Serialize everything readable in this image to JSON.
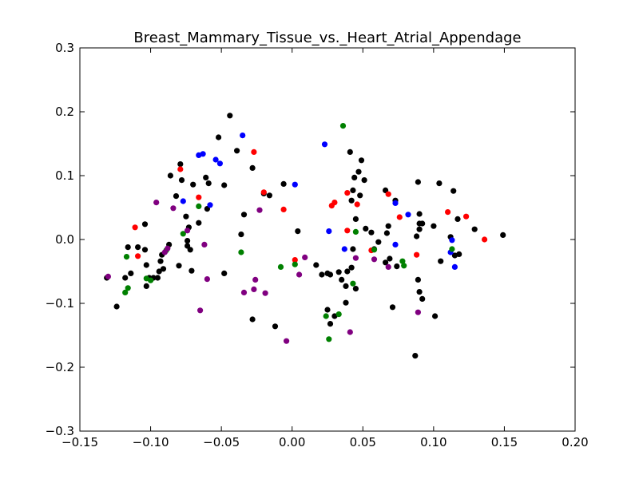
{
  "chart_data": {
    "type": "scatter",
    "title": "Breast_Mammary_Tissue_vs._Heart_Atrial_Appendage",
    "xlabel": "",
    "ylabel": "",
    "xlim": [
      -0.15,
      0.2
    ],
    "ylim": [
      -0.3,
      0.3
    ],
    "xticks": [
      -0.15,
      -0.1,
      -0.05,
      0.0,
      0.05,
      0.1,
      0.15,
      0.2
    ],
    "xtick_labels": [
      "−0.15",
      "−0.10",
      "−0.05",
      "0.00",
      "0.05",
      "0.10",
      "0.15",
      "0.20"
    ],
    "yticks": [
      -0.3,
      -0.2,
      -0.1,
      0.0,
      0.1,
      0.2,
      0.3
    ],
    "ytick_labels": [
      "−0.3",
      "−0.2",
      "−0.1",
      "0.0",
      "0.1",
      "0.2",
      "0.3"
    ],
    "grid": false,
    "series": [
      {
        "color": "#000000",
        "points": [
          [
            -0.131,
            -0.06
          ],
          [
            -0.124,
            -0.105
          ],
          [
            -0.118,
            -0.06
          ],
          [
            -0.116,
            -0.012
          ],
          [
            -0.114,
            -0.053
          ],
          [
            -0.109,
            -0.012
          ],
          [
            -0.104,
            0.024
          ],
          [
            -0.104,
            -0.016
          ],
          [
            -0.103,
            -0.04
          ],
          [
            -0.103,
            -0.073
          ],
          [
            -0.101,
            -0.06
          ],
          [
            -0.098,
            -0.06
          ],
          [
            -0.095,
            -0.06
          ],
          [
            -0.094,
            -0.05
          ],
          [
            -0.093,
            -0.034
          ],
          [
            -0.092,
            -0.024
          ],
          [
            -0.091,
            -0.046
          ],
          [
            -0.087,
            -0.008
          ],
          [
            -0.086,
            0.1
          ],
          [
            -0.082,
            0.068
          ],
          [
            -0.08,
            -0.041
          ],
          [
            -0.079,
            0.118
          ],
          [
            -0.078,
            0.093
          ],
          [
            -0.075,
            0.036
          ],
          [
            -0.074,
            -0.002
          ],
          [
            -0.074,
            -0.01
          ],
          [
            -0.073,
            0.019
          ],
          [
            -0.072,
            -0.016
          ],
          [
            -0.071,
            -0.049
          ],
          [
            -0.07,
            0.086
          ],
          [
            -0.066,
            0.026
          ],
          [
            -0.061,
            0.097
          ],
          [
            -0.06,
            0.048
          ],
          [
            -0.059,
            0.088
          ],
          [
            -0.052,
            0.16
          ],
          [
            -0.048,
            0.085
          ],
          [
            -0.048,
            -0.053
          ],
          [
            -0.044,
            0.194
          ],
          [
            -0.039,
            0.139
          ],
          [
            -0.036,
            0.008
          ],
          [
            -0.034,
            0.039
          ],
          [
            -0.028,
            0.112
          ],
          [
            -0.028,
            -0.125
          ],
          [
            -0.02,
            0.072
          ],
          [
            -0.016,
            0.069
          ],
          [
            -0.012,
            -0.136
          ],
          [
            -0.006,
            0.087
          ],
          [
            0.004,
            0.013
          ],
          [
            0.017,
            -0.04
          ],
          [
            0.021,
            -0.055
          ],
          [
            0.025,
            -0.053
          ],
          [
            0.025,
            -0.11
          ],
          [
            0.027,
            -0.055
          ],
          [
            0.027,
            -0.132
          ],
          [
            0.03,
            -0.12
          ],
          [
            0.033,
            -0.051
          ],
          [
            0.035,
            -0.063
          ],
          [
            0.038,
            -0.099
          ],
          [
            0.038,
            -0.073
          ],
          [
            0.039,
            -0.05
          ],
          [
            0.041,
            0.137
          ],
          [
            0.042,
            0.061
          ],
          [
            0.042,
            -0.044
          ],
          [
            0.043,
            0.077
          ],
          [
            0.043,
            -0.015
          ],
          [
            0.044,
            0.097
          ],
          [
            0.045,
            -0.077
          ],
          [
            0.045,
            0.032
          ],
          [
            0.047,
            0.106
          ],
          [
            0.048,
            0.069
          ],
          [
            0.049,
            0.124
          ],
          [
            0.051,
            0.093
          ],
          [
            0.052,
            0.017
          ],
          [
            0.056,
            0.011
          ],
          [
            0.058,
            -0.015
          ],
          [
            0.061,
            -0.004
          ],
          [
            0.066,
            0.077
          ],
          [
            0.066,
            -0.036
          ],
          [
            0.067,
            0.01
          ],
          [
            0.068,
            0.021
          ],
          [
            0.069,
            -0.03
          ],
          [
            0.071,
            -0.106
          ],
          [
            0.073,
            0.061
          ],
          [
            0.074,
            -0.042
          ],
          [
            0.087,
            -0.182
          ],
          [
            0.088,
            0.005
          ],
          [
            0.089,
            0.09
          ],
          [
            0.089,
            -0.063
          ],
          [
            0.09,
            0.025
          ],
          [
            0.09,
            0.016
          ],
          [
            0.09,
            0.04
          ],
          [
            0.09,
            -0.082
          ],
          [
            0.092,
            0.025
          ],
          [
            0.092,
            -0.093
          ],
          [
            0.1,
            0.021
          ],
          [
            0.101,
            -0.12
          ],
          [
            0.104,
            0.088
          ],
          [
            0.105,
            -0.034
          ],
          [
            0.112,
            0.004
          ],
          [
            0.114,
            0.076
          ],
          [
            0.115,
            -0.025
          ],
          [
            0.117,
            0.032
          ],
          [
            0.118,
            -0.023
          ],
          [
            0.129,
            0.016
          ],
          [
            0.149,
            0.007
          ]
        ]
      },
      {
        "color": "#ff0000",
        "points": [
          [
            -0.111,
            0.019
          ],
          [
            -0.109,
            -0.026
          ],
          [
            -0.079,
            0.11
          ],
          [
            -0.066,
            0.066
          ],
          [
            -0.027,
            0.137
          ],
          [
            -0.02,
            0.074
          ],
          [
            -0.006,
            0.047
          ],
          [
            0.002,
            -0.032
          ],
          [
            0.028,
            0.053
          ],
          [
            0.03,
            0.058
          ],
          [
            0.039,
            0.073
          ],
          [
            0.039,
            0.014
          ],
          [
            0.046,
            0.055
          ],
          [
            0.056,
            -0.017
          ],
          [
            0.068,
            0.071
          ],
          [
            0.076,
            0.035
          ],
          [
            0.088,
            -0.024
          ],
          [
            0.11,
            0.043
          ],
          [
            0.123,
            0.036
          ],
          [
            0.136,
            0.0
          ]
        ]
      },
      {
        "color": "#0000ff",
        "points": [
          [
            -0.077,
            0.06
          ],
          [
            -0.066,
            0.132
          ],
          [
            -0.063,
            0.134
          ],
          [
            -0.058,
            0.054
          ],
          [
            -0.054,
            0.125
          ],
          [
            -0.051,
            0.119
          ],
          [
            -0.035,
            0.163
          ],
          [
            0.002,
            0.086
          ],
          [
            0.023,
            0.149
          ],
          [
            0.026,
            0.013
          ],
          [
            0.037,
            -0.015
          ],
          [
            0.073,
            0.057
          ],
          [
            0.073,
            -0.008
          ],
          [
            0.082,
            0.039
          ],
          [
            0.112,
            -0.02
          ],
          [
            0.113,
            -0.001
          ],
          [
            0.115,
            -0.043
          ]
        ]
      },
      {
        "color": "#008000",
        "points": [
          [
            -0.118,
            -0.083
          ],
          [
            -0.117,
            -0.027
          ],
          [
            -0.116,
            -0.076
          ],
          [
            -0.103,
            -0.061
          ],
          [
            -0.1,
            -0.064
          ],
          [
            -0.089,
            -0.017
          ],
          [
            -0.077,
            0.009
          ],
          [
            -0.066,
            0.052
          ],
          [
            -0.036,
            -0.02
          ],
          [
            -0.008,
            -0.043
          ],
          [
            0.002,
            -0.039
          ],
          [
            0.024,
            -0.12
          ],
          [
            0.026,
            -0.156
          ],
          [
            0.033,
            -0.117
          ],
          [
            0.036,
            0.178
          ],
          [
            0.043,
            -0.069
          ],
          [
            0.045,
            0.012
          ],
          [
            0.058,
            -0.016
          ],
          [
            0.078,
            -0.034
          ],
          [
            0.079,
            -0.041
          ],
          [
            0.113,
            -0.015
          ]
        ]
      },
      {
        "color": "#800080",
        "points": [
          [
            -0.13,
            -0.058
          ],
          [
            -0.096,
            0.058
          ],
          [
            -0.09,
            -0.02
          ],
          [
            -0.088,
            -0.014
          ],
          [
            -0.084,
            0.049
          ],
          [
            -0.074,
            0.014
          ],
          [
            -0.065,
            -0.111
          ],
          [
            -0.062,
            -0.008
          ],
          [
            -0.06,
            -0.062
          ],
          [
            -0.034,
            -0.083
          ],
          [
            -0.027,
            -0.078
          ],
          [
            -0.026,
            -0.063
          ],
          [
            -0.023,
            0.046
          ],
          [
            -0.019,
            -0.084
          ],
          [
            -0.004,
            -0.159
          ],
          [
            0.005,
            -0.055
          ],
          [
            0.009,
            -0.028
          ],
          [
            0.041,
            -0.145
          ],
          [
            0.045,
            -0.029
          ],
          [
            0.058,
            -0.031
          ],
          [
            0.068,
            -0.043
          ],
          [
            0.089,
            -0.114
          ]
        ]
      }
    ]
  }
}
